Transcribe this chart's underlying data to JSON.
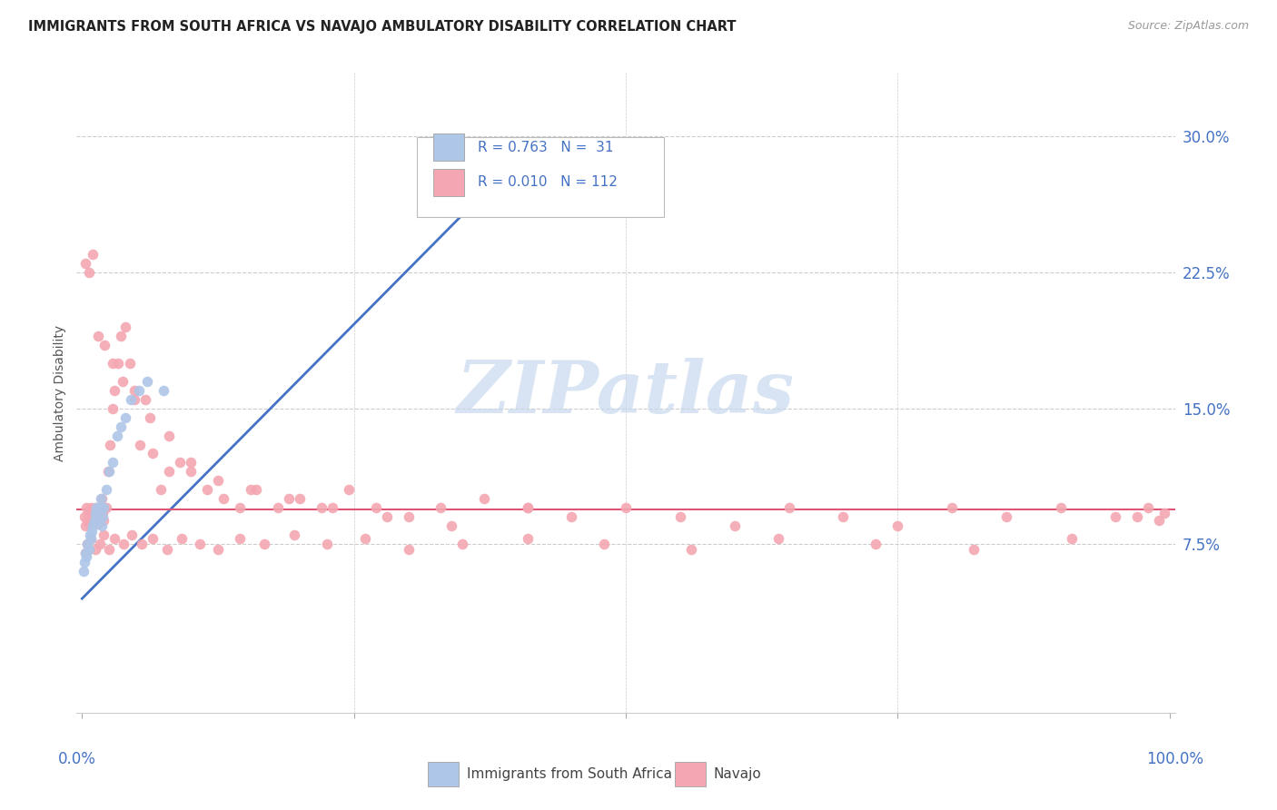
{
  "title": "IMMIGRANTS FROM SOUTH AFRICA VS NAVAJO AMBULATORY DISABILITY CORRELATION CHART",
  "source": "Source: ZipAtlas.com",
  "ylabel": "Ambulatory Disability",
  "ytick_vals": [
    0.075,
    0.15,
    0.225,
    0.3
  ],
  "ytick_labels": [
    "7.5%",
    "15.0%",
    "22.5%",
    "30.0%"
  ],
  "xlim": [
    -0.005,
    1.005
  ],
  "ylim": [
    -0.018,
    0.335
  ],
  "legend_entries": [
    {
      "label": "Immigrants from South Africa",
      "R": "0.763",
      "N": " 31",
      "color": "#aec6e8"
    },
    {
      "label": "Navajo",
      "R": "0.010",
      "N": "112",
      "color": "#f4a7b2"
    }
  ],
  "title_color": "#222222",
  "source_color": "#999999",
  "axis_color": "#4472c4",
  "grid_color": "#cccccc",
  "blue_line_color": "#4472c4",
  "pink_line_color": "#e05575",
  "legend_text_color": "#4472c4",
  "watermark_text": "ZIPatlas",
  "watermark_color": "#c8d8ee",
  "scatter_size": 70,
  "blue_x": [
    0.001,
    0.002,
    0.003,
    0.004,
    0.005,
    0.006,
    0.007,
    0.008,
    0.009,
    0.01,
    0.011,
    0.012,
    0.013,
    0.014,
    0.015,
    0.016,
    0.017,
    0.018,
    0.019,
    0.02,
    0.022,
    0.025,
    0.028,
    0.032,
    0.036,
    0.04,
    0.045,
    0.052,
    0.06,
    0.075,
    0.38
  ],
  "blue_y": [
    0.06,
    0.065,
    0.07,
    0.068,
    0.075,
    0.072,
    0.08,
    0.078,
    0.082,
    0.085,
    0.088,
    0.092,
    0.095,
    0.09,
    0.088,
    0.095,
    0.1,
    0.085,
    0.09,
    0.095,
    0.105,
    0.115,
    0.12,
    0.135,
    0.14,
    0.145,
    0.155,
    0.16,
    0.165,
    0.16,
    0.275
  ],
  "pink_x": [
    0.002,
    0.003,
    0.004,
    0.005,
    0.006,
    0.007,
    0.008,
    0.009,
    0.01,
    0.011,
    0.012,
    0.013,
    0.014,
    0.015,
    0.016,
    0.017,
    0.018,
    0.019,
    0.02,
    0.022,
    0.024,
    0.026,
    0.028,
    0.03,
    0.033,
    0.036,
    0.04,
    0.044,
    0.048,
    0.053,
    0.058,
    0.065,
    0.072,
    0.08,
    0.09,
    0.1,
    0.115,
    0.13,
    0.145,
    0.16,
    0.18,
    0.2,
    0.22,
    0.245,
    0.27,
    0.3,
    0.33,
    0.37,
    0.41,
    0.45,
    0.5,
    0.55,
    0.6,
    0.65,
    0.7,
    0.75,
    0.8,
    0.85,
    0.9,
    0.95,
    0.97,
    0.98,
    0.99,
    0.995,
    0.003,
    0.005,
    0.008,
    0.012,
    0.016,
    0.02,
    0.025,
    0.03,
    0.038,
    0.046,
    0.055,
    0.065,
    0.078,
    0.092,
    0.108,
    0.125,
    0.145,
    0.168,
    0.195,
    0.225,
    0.26,
    0.3,
    0.35,
    0.41,
    0.48,
    0.56,
    0.64,
    0.73,
    0.82,
    0.91,
    0.003,
    0.006,
    0.01,
    0.015,
    0.021,
    0.028,
    0.037,
    0.048,
    0.062,
    0.08,
    0.1,
    0.125,
    0.155,
    0.19,
    0.23,
    0.28,
    0.34,
    0.41
  ],
  "pink_y": [
    0.09,
    0.085,
    0.095,
    0.088,
    0.092,
    0.086,
    0.095,
    0.09,
    0.088,
    0.092,
    0.095,
    0.088,
    0.092,
    0.086,
    0.09,
    0.095,
    0.1,
    0.092,
    0.088,
    0.095,
    0.115,
    0.13,
    0.15,
    0.16,
    0.175,
    0.19,
    0.195,
    0.175,
    0.16,
    0.13,
    0.155,
    0.125,
    0.105,
    0.115,
    0.12,
    0.115,
    0.105,
    0.1,
    0.095,
    0.105,
    0.095,
    0.1,
    0.095,
    0.105,
    0.095,
    0.09,
    0.095,
    0.1,
    0.095,
    0.09,
    0.095,
    0.09,
    0.085,
    0.095,
    0.09,
    0.085,
    0.095,
    0.09,
    0.095,
    0.09,
    0.09,
    0.095,
    0.088,
    0.092,
    0.07,
    0.075,
    0.078,
    0.072,
    0.075,
    0.08,
    0.072,
    0.078,
    0.075,
    0.08,
    0.075,
    0.078,
    0.072,
    0.078,
    0.075,
    0.072,
    0.078,
    0.075,
    0.08,
    0.075,
    0.078,
    0.072,
    0.075,
    0.078,
    0.075,
    0.072,
    0.078,
    0.075,
    0.072,
    0.078,
    0.23,
    0.225,
    0.235,
    0.19,
    0.185,
    0.175,
    0.165,
    0.155,
    0.145,
    0.135,
    0.12,
    0.11,
    0.105,
    0.1,
    0.095,
    0.09,
    0.085,
    0.095
  ],
  "blue_line_x": [
    0.0,
    0.38
  ],
  "blue_line_y": [
    0.045,
    0.275
  ],
  "pink_line_y": 0.094
}
